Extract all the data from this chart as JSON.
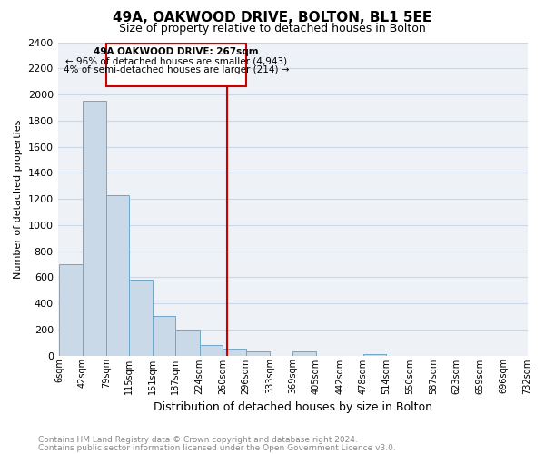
{
  "title": "49A, OAKWOOD DRIVE, BOLTON, BL1 5EE",
  "subtitle": "Size of property relative to detached houses in Bolton",
  "xlabel": "Distribution of detached houses by size in Bolton",
  "ylabel": "Number of detached properties",
  "bin_edges": [
    6,
    42,
    79,
    115,
    151,
    187,
    224,
    260,
    296,
    333,
    369,
    405,
    442,
    478,
    514,
    550,
    587,
    623,
    659,
    696,
    732
  ],
  "bar_heights": [
    700,
    1950,
    1230,
    580,
    300,
    200,
    80,
    50,
    30,
    0,
    30,
    0,
    0,
    10,
    0,
    0,
    0,
    0,
    0,
    0
  ],
  "bar_color": "#c9d9e8",
  "bar_edge_color": "#6fa8c8",
  "vline_x": 267,
  "vline_color": "#cc0000",
  "ylim": [
    0,
    2400
  ],
  "xlim_left": 6,
  "xlim_right": 732,
  "annotation_text_line1": "49A OAKWOOD DRIVE: 267sqm",
  "annotation_text_line2": "← 96% of detached houses are smaller (4,943)",
  "annotation_text_line3": "4% of semi-detached houses are larger (214) →",
  "annotation_box_color": "#cc0000",
  "annotation_fill_color": "#ffffff",
  "footer_line1": "Contains HM Land Registry data © Crown copyright and database right 2024.",
  "footer_line2": "Contains public sector information licensed under the Open Government Licence v3.0.",
  "grid_color": "#c8d8e8",
  "background_color": "#eef2f7",
  "tick_labels": [
    "6sqm",
    "42sqm",
    "79sqm",
    "115sqm",
    "151sqm",
    "187sqm",
    "224sqm",
    "260sqm",
    "296sqm",
    "333sqm",
    "369sqm",
    "405sqm",
    "442sqm",
    "478sqm",
    "514sqm",
    "550sqm",
    "587sqm",
    "623sqm",
    "659sqm",
    "696sqm",
    "732sqm"
  ],
  "yticks": [
    0,
    200,
    400,
    600,
    800,
    1000,
    1200,
    1400,
    1600,
    1800,
    2000,
    2200,
    2400
  ],
  "title_fontsize": 11,
  "subtitle_fontsize": 9,
  "ylabel_fontsize": 8,
  "xlabel_fontsize": 9,
  "tick_fontsize": 7,
  "ytick_fontsize": 8,
  "footer_fontsize": 6.5,
  "footer_color": "#888888"
}
